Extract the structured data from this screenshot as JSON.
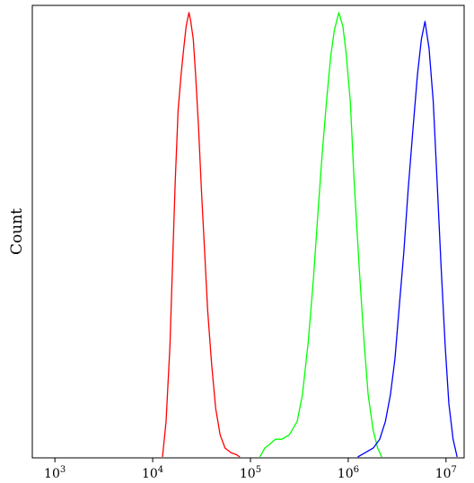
{
  "chart_data": {
    "type": "line",
    "title": "",
    "xlabel": "",
    "ylabel": "Count",
    "x_scale": "log",
    "xlim": [
      600,
      15000000
    ],
    "ylim": [
      0,
      1.0
    ],
    "grid": false,
    "legend": "none",
    "x_ticks": [
      {
        "value": 1000,
        "base": "10",
        "exp": "3"
      },
      {
        "value": 10000,
        "base": "10",
        "exp": "4"
      },
      {
        "value": 100000,
        "base": "10",
        "exp": "5"
      },
      {
        "value": 1000000,
        "base": "10",
        "exp": "6"
      },
      {
        "value": 10000000,
        "base": "10",
        "exp": "7"
      }
    ],
    "series": [
      {
        "color": "#ff0000",
        "x": [
          12600,
          13700,
          15000,
          16000,
          17000,
          18200,
          19500,
          20800,
          22000,
          23500,
          24500,
          26000,
          27500,
          29500,
          31500,
          34000,
          36500,
          40000,
          44000,
          49000,
          55000,
          63000,
          72000,
          78000
        ],
        "y": [
          0,
          0.08,
          0.25,
          0.44,
          0.62,
          0.78,
          0.86,
          0.92,
          0.97,
          1.0,
          0.98,
          0.94,
          0.86,
          0.74,
          0.6,
          0.46,
          0.33,
          0.21,
          0.11,
          0.05,
          0.02,
          0.01,
          0.005,
          0
        ]
      },
      {
        "color": "#00ff00",
        "x": [
          125000,
          140000,
          160000,
          180000,
          210000,
          250000,
          300000,
          340000,
          390000,
          440000,
          490000,
          540000,
          600000,
          660000,
          720000,
          800000,
          880000,
          950000,
          1050000,
          1150000,
          1300000,
          1450000,
          1600000,
          1800000,
          2000000,
          2200000
        ],
        "y": [
          0,
          0.02,
          0.03,
          0.04,
          0.04,
          0.05,
          0.08,
          0.14,
          0.26,
          0.4,
          0.55,
          0.68,
          0.8,
          0.9,
          0.96,
          1.0,
          0.97,
          0.91,
          0.8,
          0.62,
          0.42,
          0.26,
          0.14,
          0.06,
          0.02,
          0
        ]
      },
      {
        "color": "#0000ff",
        "x": [
          1250000,
          1500000,
          1800000,
          2100000,
          2400000,
          2700000,
          3000000,
          3300000,
          3700000,
          4100000,
          4600000,
          5100000,
          5600000,
          6100000,
          6700000,
          7400000,
          8100000,
          8900000,
          9800000,
          10700000,
          11800000,
          13000000
        ],
        "y": [
          0,
          0.01,
          0.02,
          0.04,
          0.08,
          0.14,
          0.22,
          0.33,
          0.46,
          0.6,
          0.74,
          0.86,
          0.94,
          0.98,
          0.92,
          0.8,
          0.62,
          0.43,
          0.25,
          0.12,
          0.04,
          0
        ]
      }
    ]
  }
}
